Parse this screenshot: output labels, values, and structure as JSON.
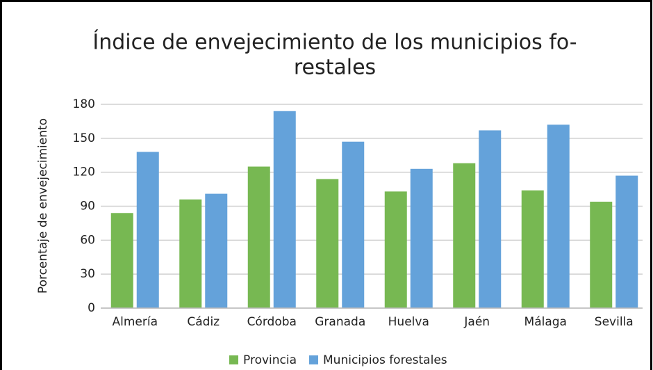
{
  "chart_data": {
    "type": "bar",
    "title": [
      "Índice de envejecimiento de los municipios fo-",
      "restales"
    ],
    "y_label": "Porcentaje de envejecimiento",
    "categories": [
      "Almería",
      "Cádiz",
      "Córdoba",
      "Granada",
      "Huelva",
      "Jaén",
      "Málaga",
      "Sevilla"
    ],
    "series": [
      {
        "name": "Provincia",
        "color": "#77b852",
        "values": [
          84,
          96,
          125,
          114,
          103,
          128,
          104,
          94
        ]
      },
      {
        "name": "Municipios forestales",
        "color": "#64a2da",
        "values": [
          138,
          101,
          174,
          147,
          123,
          157,
          162,
          117
        ]
      }
    ],
    "ylim": [
      0,
      180
    ],
    "yticks": [
      0,
      30,
      60,
      90,
      120,
      150,
      180
    ],
    "grid": true,
    "legend": "bottom"
  }
}
